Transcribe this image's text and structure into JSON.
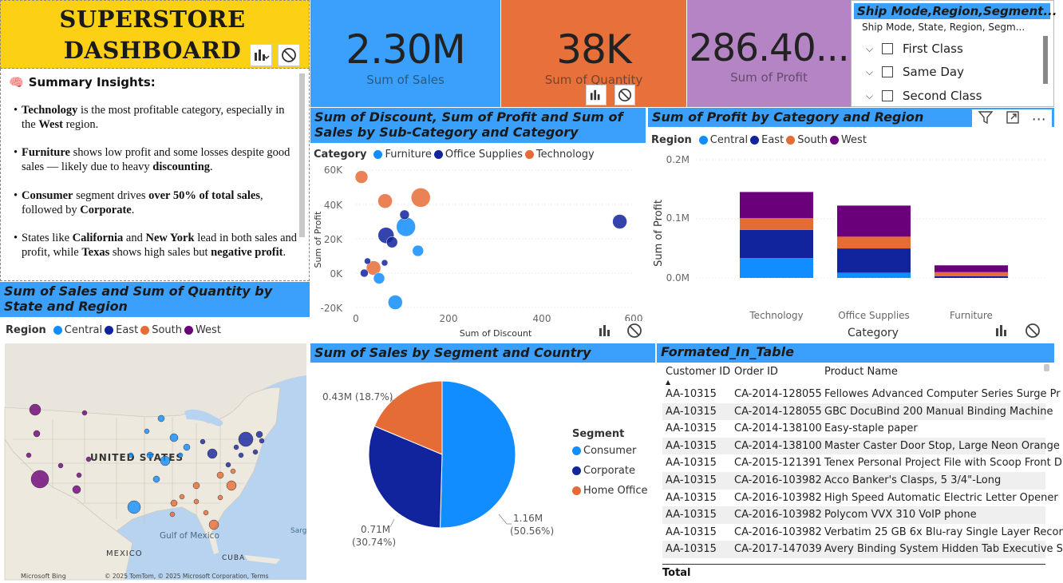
{
  "title": {
    "line1": "SUPERSTORE",
    "line2": "DASHBOARD"
  },
  "insights": {
    "heading": "Summary Insights:",
    "p1": {
      "b1": "Technology",
      "t1": " is the most profitable category, especially in the ",
      "b2": "West",
      "t2": " region."
    },
    "p2": {
      "b1": "Furniture",
      "t1": " shows low profit and some losses despite good sales — likely due to heavy ",
      "b2": "discounting",
      "t2": "."
    },
    "p3": {
      "b1": "Consumer",
      "t1": " segment drives ",
      "b2": "over 50% of total sales",
      "t2": ", followed by ",
      "b3": "Corporate",
      "t3": "."
    },
    "p4": {
      "t0": "States like ",
      "b1": "California",
      "t1": " and ",
      "b2": "New York",
      "t2": " lead in both sales and profit, while ",
      "b3": "Texas",
      "t3": " shows high sales but ",
      "b4": "negative profit",
      "t4": "."
    }
  },
  "kpis": {
    "sales": {
      "value": "2.30M",
      "label": "Sum of Sales",
      "color": "#3aa0fb"
    },
    "quantity": {
      "value": "38K",
      "label": "Sum of Quantity",
      "color": "#e8703a"
    },
    "profit": {
      "value": "286.40...",
      "label": "Sum of Profit",
      "color": "#b584c4"
    }
  },
  "slicer": {
    "header": "Ship Mode,Region,Segment...",
    "subheader": "Ship Mode, State, Region, Segm...",
    "items": [
      "First Class",
      "Same Day",
      "Second Class"
    ]
  },
  "scatter": {
    "title": "Sum of Discount, Sum of Profit and Sum of Sales by Sub-Category and Category",
    "legend_label": "Category",
    "legend": [
      {
        "name": "Furniture",
        "color": "#118dff"
      },
      {
        "name": "Office Supplies",
        "color": "#12239e"
      },
      {
        "name": "Technology",
        "color": "#e66c37"
      }
    ],
    "x_label": "Sum of Discount",
    "y_label": "Sum of Profit",
    "x_ticks": [
      "0",
      "200",
      "400",
      "600"
    ],
    "y_ticks": [
      "60K",
      "40K",
      "20K",
      "0K",
      "-20K"
    ]
  },
  "stacked": {
    "title": "Sum of Profit by Category and Region",
    "legend_label": "Region",
    "legend": [
      {
        "name": "Central",
        "color": "#118dff"
      },
      {
        "name": "East",
        "color": "#12239e"
      },
      {
        "name": "South",
        "color": "#e66c37"
      },
      {
        "name": "West",
        "color": "#6b007b"
      }
    ],
    "y_label": "Sum of Profit",
    "x_label": "Category",
    "y_ticks": [
      "0.2M",
      "0.1M",
      "0.0M"
    ]
  },
  "map": {
    "title": "Sum of Sales and Sum of Quantity by State and Region",
    "legend_label": "Region",
    "legend": [
      {
        "name": "Central",
        "color": "#118dff"
      },
      {
        "name": "East",
        "color": "#12239e"
      },
      {
        "name": "South",
        "color": "#e66c37"
      },
      {
        "name": "West",
        "color": "#6b007b"
      }
    ],
    "labels": {
      "us": "UNITED STATES",
      "mexico": "MEXICO",
      "gulf": "Gulf of Mexico",
      "cuba": "CUBA",
      "sargasso": "Sarg",
      "bing": "Microsoft Bing",
      "copyright": "© 2025 TomTom, © 2025 Microsoft Corporation, Terms"
    }
  },
  "pie": {
    "title": "Sum of Sales by Segment and Country",
    "legend_label": "Segment",
    "legend": [
      {
        "name": "Consumer",
        "color": "#118dff"
      },
      {
        "name": "Corporate",
        "color": "#12239e"
      },
      {
        "name": "Home Office",
        "color": "#e66c37"
      }
    ],
    "labels": {
      "consumer": {
        "v": "1.16M",
        "p": "(50.56%)"
      },
      "corporate": {
        "v": "0.71M",
        "p": "(30.74%)"
      },
      "home": "0.43M (18.7%)"
    }
  },
  "table": {
    "title": "Formated_In_Table",
    "columns": [
      "Customer ID",
      "Order ID",
      "Product Name"
    ],
    "rows": [
      [
        "AA-10315",
        "CA-2014-128055",
        "Fellowes Advanced Computer Series Surge Pr"
      ],
      [
        "AA-10315",
        "CA-2014-128055",
        "GBC DocuBind 200 Manual Binding Machine"
      ],
      [
        "AA-10315",
        "CA-2014-138100",
        "Easy-staple paper"
      ],
      [
        "AA-10315",
        "CA-2014-138100",
        "Master Caster Door Stop, Large Neon Orange"
      ],
      [
        "AA-10315",
        "CA-2015-121391",
        "Tenex Personal Project File with Scoop Front D"
      ],
      [
        "AA-10315",
        "CA-2016-103982",
        "Acco Banker's Clasps, 5 3/4\"-Long"
      ],
      [
        "AA-10315",
        "CA-2016-103982",
        "High Speed Automatic Electric Letter Opener"
      ],
      [
        "AA-10315",
        "CA-2016-103982",
        "Polycom VVX 310 VoIP phone"
      ],
      [
        "AA-10315",
        "CA-2016-103982",
        "Verbatim 25 GB 6x Blu-ray Single Layer Recor"
      ],
      [
        "AA-10315",
        "CA-2017-147039",
        "Avery Binding System Hidden Tab Executive S"
      ]
    ],
    "total_label": "Total"
  },
  "chart_data": [
    {
      "type": "scatter",
      "title": "Sum of Discount, Sum of Profit and Sum of Sales by Sub-Category and Category",
      "xlabel": "Sum of Discount",
      "ylabel": "Sum of Profit",
      "xlim": [
        0,
        600
      ],
      "ylim": [
        -20000,
        60000
      ],
      "points": [
        {
          "x": 12,
          "y": 56000,
          "size": 8,
          "cat": "Technology"
        },
        {
          "x": 63,
          "y": 42000,
          "size": 9,
          "cat": "Technology"
        },
        {
          "x": 140,
          "y": 44000,
          "size": 12,
          "cat": "Technology"
        },
        {
          "x": 38,
          "y": 3000,
          "size": 9,
          "cat": "Technology"
        },
        {
          "x": 108,
          "y": 27000,
          "size": 12,
          "cat": "Furniture"
        },
        {
          "x": 134,
          "y": 13000,
          "size": 7,
          "cat": "Furniture"
        },
        {
          "x": 50,
          "y": -3000,
          "size": 7,
          "cat": "Furniture"
        },
        {
          "x": 85,
          "y": -17000,
          "size": 9,
          "cat": "Furniture"
        },
        {
          "x": 65,
          "y": 22000,
          "size": 10,
          "cat": "Office Supplies"
        },
        {
          "x": 105,
          "y": 34000,
          "size": 6,
          "cat": "Office Supplies"
        },
        {
          "x": 78,
          "y": 18000,
          "size": 7,
          "cat": "Office Supplies"
        },
        {
          "x": 25,
          "y": 7000,
          "size": 4,
          "cat": "Office Supplies"
        },
        {
          "x": 18,
          "y": 0,
          "size": 5,
          "cat": "Office Supplies"
        },
        {
          "x": 62,
          "y": 6000,
          "size": 4,
          "cat": "Office Supplies"
        },
        {
          "x": 570,
          "y": 30000,
          "size": 9,
          "cat": "Office Supplies"
        }
      ]
    },
    {
      "type": "bar",
      "title": "Sum of Profit by Category and Region",
      "categories": [
        "Technology",
        "Office Supplies",
        "Furniture"
      ],
      "xlabel": "Category",
      "ylabel": "Sum of Profit",
      "ylim": [
        0,
        200000
      ],
      "series": [
        {
          "name": "Central",
          "values": [
            33700,
            8900,
            -2900
          ]
        },
        {
          "name": "East",
          "values": [
            47500,
            41000,
            3000
          ]
        },
        {
          "name": "South",
          "values": [
            19900,
            19900,
            6800
          ]
        },
        {
          "name": "West",
          "values": [
            44300,
            52600,
            11500
          ]
        }
      ]
    },
    {
      "type": "pie",
      "title": "Sum of Sales by Segment and Country",
      "slices": [
        {
          "name": "Consumer",
          "value": 1160000,
          "pct": 50.56
        },
        {
          "name": "Corporate",
          "value": 710000,
          "pct": 30.74
        },
        {
          "name": "Home Office",
          "value": 430000,
          "pct": 18.7
        }
      ]
    }
  ]
}
